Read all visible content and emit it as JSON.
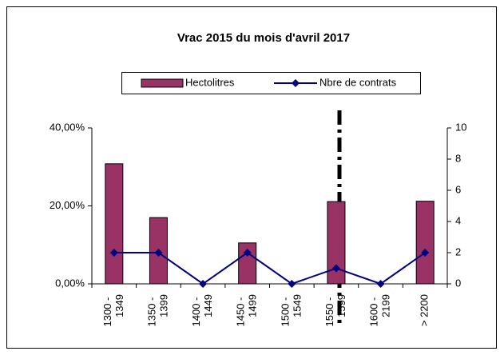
{
  "chart_data": {
    "type": "bar-line",
    "title": "Vrac 2015 du mois d'avril 2017",
    "categories": [
      "1300 - 1349",
      "1350 - 1399",
      "1400 - 1449",
      "1450 - 1499",
      "1500 - 1549",
      "1550 - 1599",
      "1600 - 2199",
      "> 2200"
    ],
    "series": [
      {
        "name": "Hectolitres",
        "color": "#993366",
        "values": [
          30.8,
          17.0,
          0,
          10.5,
          0,
          21.1,
          0,
          21.2
        ]
      },
      {
        "name": "Nbre de contrats",
        "color": "#000080",
        "axis": "y2",
        "values": [
          2,
          2,
          0,
          2,
          0,
          1,
          0,
          2
        ]
      }
    ],
    "ylim": [
      0,
      40
    ],
    "yticks": [
      {
        "value": 0,
        "label": "0,00%"
      },
      {
        "value": 20,
        "label": "20,00%"
      },
      {
        "value": 40,
        "label": "40,00%"
      }
    ],
    "y2lim": [
      0,
      10
    ],
    "y2ticks": [
      0,
      2,
      4,
      6,
      8,
      10
    ]
  }
}
